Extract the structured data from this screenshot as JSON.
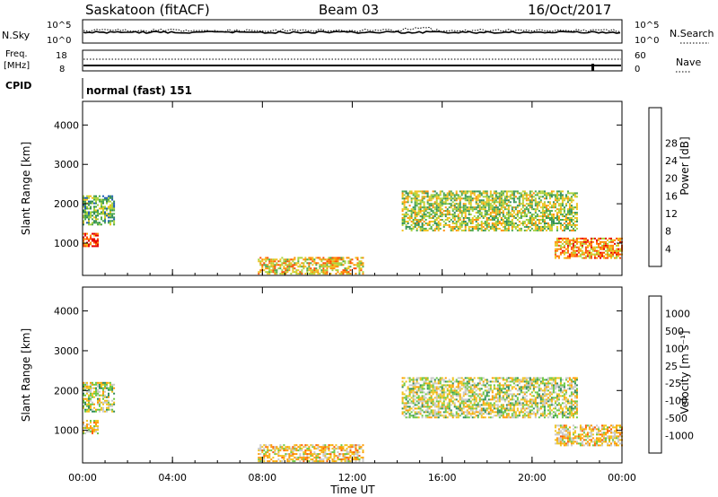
{
  "header": {
    "station": "Saskatoon (fitACF)",
    "beam": "Beam 03",
    "date": "16/Oct/2017"
  },
  "strip1": {
    "left_label": "N.Sky",
    "right_label": "N.Search",
    "tick_top": "10^5",
    "tick_bottom": "10^0"
  },
  "strip2": {
    "left_label_1": "Freq.",
    "left_label_2": "[MHz]",
    "right_label": "Nave",
    "left_ticks": [
      "18",
      "8"
    ],
    "right_ticks": [
      "60",
      "0"
    ]
  },
  "cpid": {
    "label": "CPID",
    "value": "normal (fast) 151"
  },
  "chart_data": [
    {
      "type": "heatmap",
      "panel": "power",
      "xlabel": "Time UT",
      "ylabel": "Slant Range [km]",
      "x_tick_labels": [
        "00:00",
        "04:00",
        "08:00",
        "12:00",
        "16:00",
        "20:00",
        "00:00"
      ],
      "x_hours": [
        0,
        4,
        8,
        12,
        16,
        20,
        24
      ],
      "xlim_hours": [
        0,
        24
      ],
      "y_ticks": [
        1000,
        2000,
        3000,
        4000
      ],
      "ylim": [
        180,
        4600
      ],
      "colorbar": {
        "label": "Power [dB]",
        "tick_labels": [
          "4",
          "8",
          "12",
          "16",
          "20",
          "24",
          "28"
        ],
        "colors": [
          "#1a1aff",
          "#1f5fb0",
          "#2e8b57",
          "#4aa84a",
          "#a8d23a",
          "#f0c21a",
          "#ff8c00",
          "#ff4a00",
          "#e60000"
        ]
      },
      "regions": [
        {
          "t0": 0.0,
          "t1": 1.4,
          "r0": 1450,
          "r1": 2200,
          "level": 3
        },
        {
          "t0": 0.0,
          "t1": 0.7,
          "r0": 900,
          "r1": 1250,
          "level": 7
        },
        {
          "t0": 14.2,
          "t1": 22.0,
          "r0": 1300,
          "r1": 2300,
          "level": 4
        },
        {
          "t0": 21.0,
          "t1": 24.0,
          "r0": 600,
          "r1": 1100,
          "level": 6
        },
        {
          "t0": 7.8,
          "t1": 12.5,
          "r0": 200,
          "r1": 650,
          "level": 5
        }
      ]
    },
    {
      "type": "heatmap",
      "panel": "velocity",
      "xlabel": "Time UT",
      "ylabel": "Slant Range [km]",
      "x_tick_labels": [
        "00:00",
        "04:00",
        "08:00",
        "12:00",
        "16:00",
        "20:00",
        "00:00"
      ],
      "x_hours": [
        0,
        4,
        8,
        12,
        16,
        20,
        24
      ],
      "xlim_hours": [
        0,
        24
      ],
      "y_ticks": [
        1000,
        2000,
        3000,
        4000
      ],
      "ylim": [
        180,
        4600
      ],
      "colorbar": {
        "label": "Velocity [m s⁻¹]",
        "tick_labels": [
          "1000",
          "500",
          "100",
          "25",
          "-25",
          "-100",
          "-500",
          "-1000"
        ],
        "colors": [
          "#1a2ea8",
          "#2a62b8",
          "#2e8b57",
          "#6ac840",
          "#c8c8c8",
          "#f0c21a",
          "#ff9a00",
          "#ff5a00",
          "#e60000"
        ]
      },
      "regions": [
        {
          "t0": 0.0,
          "t1": 1.4,
          "r0": 1450,
          "r1": 2200,
          "level": 4
        },
        {
          "t0": 0.0,
          "t1": 0.7,
          "r0": 900,
          "r1": 1250,
          "level": 5
        },
        {
          "t0": 14.2,
          "t1": 22.0,
          "r0": 1300,
          "r1": 2300,
          "level": 4
        },
        {
          "t0": 21.0,
          "t1": 24.0,
          "r0": 600,
          "r1": 1100,
          "level": 5
        },
        {
          "t0": 7.8,
          "t1": 12.5,
          "r0": 200,
          "r1": 650,
          "level": 5
        }
      ]
    }
  ]
}
